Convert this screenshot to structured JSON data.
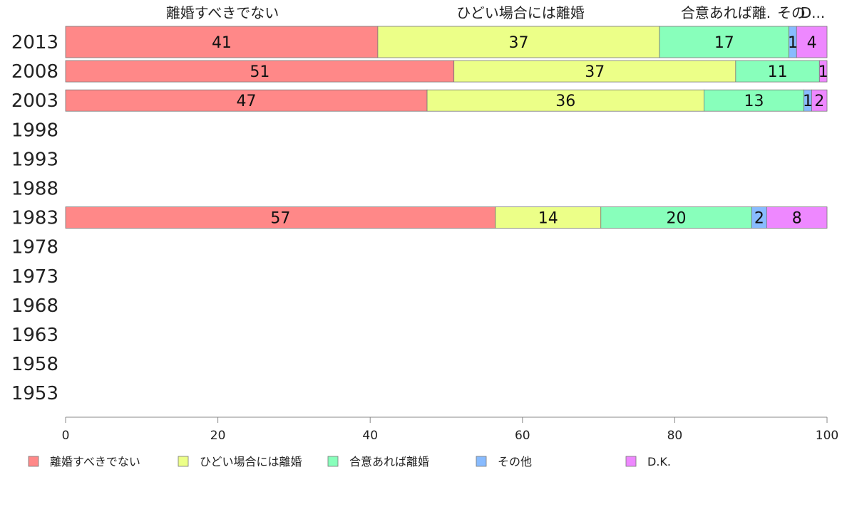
{
  "chart_data": {
    "type": "bar",
    "orientation": "horizontal",
    "stacked": true,
    "categories": [
      "2013",
      "2008",
      "2003",
      "1998",
      "1993",
      "1988",
      "1983",
      "1978",
      "1973",
      "1968",
      "1963",
      "1958",
      "1953"
    ],
    "series": [
      {
        "name": "離婚すべきでない",
        "color": "#ff8888",
        "values": [
          41,
          51,
          47,
          null,
          null,
          null,
          57,
          null,
          null,
          null,
          null,
          null,
          null
        ]
      },
      {
        "name": "ひどい場合には離婚",
        "color": "#ecff88",
        "values": [
          37,
          37,
          36,
          null,
          null,
          null,
          14,
          null,
          null,
          null,
          null,
          null,
          null
        ]
      },
      {
        "name": "合意あれば離婚",
        "color": "#88ffbb",
        "values": [
          17,
          11,
          13,
          null,
          null,
          null,
          20,
          null,
          null,
          null,
          null,
          null,
          null
        ]
      },
      {
        "name": "その他",
        "color": "#88bbff",
        "values": [
          1,
          0,
          1,
          null,
          null,
          null,
          2,
          null,
          null,
          null,
          null,
          null,
          null
        ]
      },
      {
        "name": "D.K.",
        "color": "#ee88ff",
        "values": [
          4,
          1,
          2,
          null,
          null,
          null,
          8,
          null,
          null,
          null,
          null,
          null,
          null
        ]
      }
    ],
    "top_labels": [
      "離婚すべきでない",
      "ひどい場合には離婚",
      "合意あれば離.",
      "その",
      "D..."
    ],
    "xlim": [
      0,
      100
    ],
    "xticks": [
      "0",
      "20",
      "40",
      "60",
      "80",
      "100"
    ],
    "legend_position": "bottom",
    "grid": false
  }
}
